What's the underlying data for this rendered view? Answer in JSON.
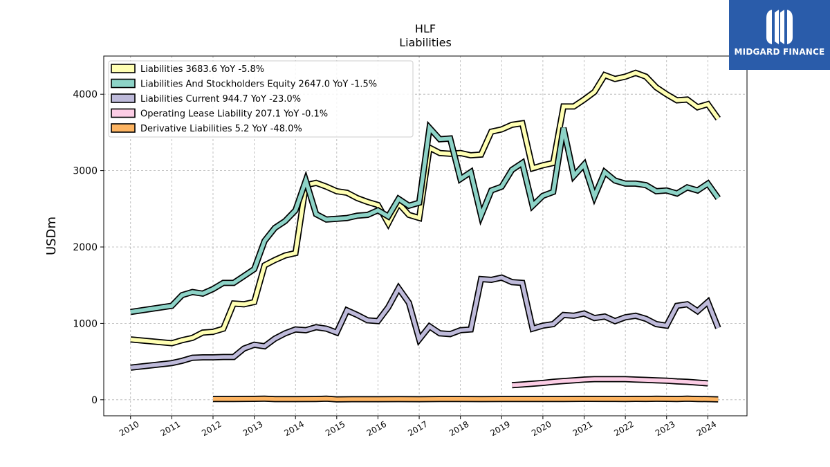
{
  "chart_data": {
    "type": "line",
    "title": "HLF",
    "subtitle": "Liabilities",
    "ylabel": "USDm",
    "xlabel": "",
    "xlim": [
      2009.35,
      2024.95
    ],
    "ylim": [
      -210,
      4500
    ],
    "yticks": [
      0,
      1000,
      2000,
      3000,
      4000
    ],
    "xticks": [
      2010,
      2011,
      2012,
      2013,
      2014,
      2015,
      2016,
      2017,
      2018,
      2019,
      2020,
      2021,
      2022,
      2023,
      2024
    ],
    "grid": true,
    "legend_position": "top-left",
    "series": [
      {
        "name": "Liabilities",
        "legend_label": "Liabilities  3683.6 YoY -5.8%",
        "color": "#ffffb3",
        "points": [
          [
            2010.0,
            790
          ],
          [
            2011.0,
            740
          ],
          [
            2011.25,
            780
          ],
          [
            2011.5,
            810
          ],
          [
            2011.75,
            880
          ],
          [
            2012.0,
            890
          ],
          [
            2012.25,
            930
          ],
          [
            2012.5,
            1260
          ],
          [
            2012.75,
            1250
          ],
          [
            2013.0,
            1280
          ],
          [
            2013.25,
            1760
          ],
          [
            2013.5,
            1830
          ],
          [
            2013.75,
            1890
          ],
          [
            2014.0,
            1920
          ],
          [
            2014.25,
            2810
          ],
          [
            2014.5,
            2840
          ],
          [
            2014.75,
            2790
          ],
          [
            2015.0,
            2730
          ],
          [
            2015.25,
            2710
          ],
          [
            2015.5,
            2640
          ],
          [
            2015.75,
            2590
          ],
          [
            2016.0,
            2550
          ],
          [
            2016.25,
            2310
          ],
          [
            2016.5,
            2570
          ],
          [
            2016.75,
            2420
          ],
          [
            2017.0,
            2380
          ],
          [
            2017.25,
            3300
          ],
          [
            2017.5,
            3230
          ],
          [
            2017.75,
            3220
          ],
          [
            2018.0,
            3230
          ],
          [
            2018.25,
            3200
          ],
          [
            2018.5,
            3210
          ],
          [
            2018.75,
            3510
          ],
          [
            2019.0,
            3540
          ],
          [
            2019.25,
            3600
          ],
          [
            2019.5,
            3620
          ],
          [
            2019.75,
            3030
          ],
          [
            2020.0,
            3070
          ],
          [
            2020.25,
            3100
          ],
          [
            2020.5,
            3840
          ],
          [
            2020.75,
            3840
          ],
          [
            2021.0,
            3930
          ],
          [
            2021.25,
            4030
          ],
          [
            2021.5,
            4250
          ],
          [
            2021.75,
            4200
          ],
          [
            2022.0,
            4230
          ],
          [
            2022.25,
            4280
          ],
          [
            2022.5,
            4230
          ],
          [
            2022.75,
            4090
          ],
          [
            2023.0,
            4000
          ],
          [
            2023.25,
            3920
          ],
          [
            2023.5,
            3930
          ],
          [
            2023.75,
            3830
          ],
          [
            2024.0,
            3870
          ],
          [
            2024.25,
            3680
          ]
        ]
      },
      {
        "name": "Liabilities And Stockholders Equity",
        "legend_label": "Liabilities And Stockholders Equity  2647.0 YoY -1.5%",
        "color": "#8dd3c7",
        "points": [
          [
            2010.0,
            1150
          ],
          [
            2011.0,
            1230
          ],
          [
            2011.25,
            1370
          ],
          [
            2011.5,
            1410
          ],
          [
            2011.75,
            1390
          ],
          [
            2012.0,
            1450
          ],
          [
            2012.25,
            1530
          ],
          [
            2012.5,
            1530
          ],
          [
            2012.75,
            1620
          ],
          [
            2013.0,
            1710
          ],
          [
            2013.25,
            2080
          ],
          [
            2013.5,
            2250
          ],
          [
            2013.75,
            2340
          ],
          [
            2014.0,
            2480
          ],
          [
            2014.25,
            2870
          ],
          [
            2014.5,
            2430
          ],
          [
            2014.75,
            2360
          ],
          [
            2015.0,
            2370
          ],
          [
            2015.25,
            2380
          ],
          [
            2015.5,
            2410
          ],
          [
            2015.75,
            2420
          ],
          [
            2016.0,
            2480
          ],
          [
            2016.25,
            2400
          ],
          [
            2016.5,
            2630
          ],
          [
            2016.75,
            2540
          ],
          [
            2017.0,
            2580
          ],
          [
            2017.25,
            3560
          ],
          [
            2017.5,
            3410
          ],
          [
            2017.75,
            3420
          ],
          [
            2018.0,
            2890
          ],
          [
            2018.25,
            2980
          ],
          [
            2018.5,
            2410
          ],
          [
            2018.75,
            2740
          ],
          [
            2019.0,
            2790
          ],
          [
            2019.25,
            3010
          ],
          [
            2019.5,
            3100
          ],
          [
            2019.75,
            2540
          ],
          [
            2020.0,
            2670
          ],
          [
            2020.25,
            2720
          ],
          [
            2020.5,
            3560
          ],
          [
            2020.75,
            2930
          ],
          [
            2021.0,
            3080
          ],
          [
            2021.25,
            2660
          ],
          [
            2021.5,
            2980
          ],
          [
            2021.75,
            2870
          ],
          [
            2022.0,
            2830
          ],
          [
            2022.25,
            2830
          ],
          [
            2022.5,
            2810
          ],
          [
            2022.75,
            2730
          ],
          [
            2023.0,
            2740
          ],
          [
            2023.25,
            2700
          ],
          [
            2023.5,
            2780
          ],
          [
            2023.75,
            2740
          ],
          [
            2024.0,
            2830
          ],
          [
            2024.25,
            2640
          ]
        ]
      },
      {
        "name": "Liabilities Current",
        "legend_label": "Liabilities Current  944.7 YoY -23.0%",
        "color": "#bebada",
        "points": [
          [
            2010.0,
            420
          ],
          [
            2011.0,
            480
          ],
          [
            2011.25,
            510
          ],
          [
            2011.5,
            550
          ],
          [
            2011.75,
            555
          ],
          [
            2012.0,
            555
          ],
          [
            2012.25,
            560
          ],
          [
            2012.5,
            560
          ],
          [
            2012.75,
            670
          ],
          [
            2013.0,
            720
          ],
          [
            2013.25,
            700
          ],
          [
            2013.5,
            800
          ],
          [
            2013.75,
            870
          ],
          [
            2014.0,
            920
          ],
          [
            2014.25,
            910
          ],
          [
            2014.5,
            950
          ],
          [
            2014.75,
            930
          ],
          [
            2015.0,
            880
          ],
          [
            2015.25,
            1170
          ],
          [
            2015.5,
            1110
          ],
          [
            2015.75,
            1040
          ],
          [
            2016.0,
            1030
          ],
          [
            2016.25,
            1210
          ],
          [
            2016.5,
            1460
          ],
          [
            2016.75,
            1270
          ],
          [
            2017.0,
            790
          ],
          [
            2017.25,
            960
          ],
          [
            2017.5,
            870
          ],
          [
            2017.75,
            860
          ],
          [
            2018.0,
            910
          ],
          [
            2018.25,
            920
          ],
          [
            2018.5,
            1580
          ],
          [
            2018.75,
            1570
          ],
          [
            2019.0,
            1600
          ],
          [
            2019.25,
            1540
          ],
          [
            2019.5,
            1530
          ],
          [
            2019.75,
            930
          ],
          [
            2020.0,
            970
          ],
          [
            2020.25,
            990
          ],
          [
            2020.5,
            1110
          ],
          [
            2020.75,
            1100
          ],
          [
            2021.0,
            1130
          ],
          [
            2021.25,
            1070
          ],
          [
            2021.5,
            1090
          ],
          [
            2021.75,
            1030
          ],
          [
            2022.0,
            1080
          ],
          [
            2022.25,
            1100
          ],
          [
            2022.5,
            1060
          ],
          [
            2022.75,
            990
          ],
          [
            2023.0,
            970
          ],
          [
            2023.25,
            1230
          ],
          [
            2023.5,
            1250
          ],
          [
            2023.75,
            1160
          ],
          [
            2024.0,
            1280
          ],
          [
            2024.25,
            940
          ]
        ]
      },
      {
        "name": "Operating Lease Liability",
        "legend_label": "Operating Lease Liability  207.1 YoY -0.1%",
        "color": "#fccde5",
        "points": [
          [
            2019.25,
            190
          ],
          [
            2019.5,
            200
          ],
          [
            2019.75,
            210
          ],
          [
            2020.0,
            220
          ],
          [
            2020.25,
            235
          ],
          [
            2020.5,
            245
          ],
          [
            2020.75,
            255
          ],
          [
            2021.0,
            265
          ],
          [
            2021.25,
            270
          ],
          [
            2021.5,
            270
          ],
          [
            2021.75,
            270
          ],
          [
            2022.0,
            270
          ],
          [
            2022.25,
            265
          ],
          [
            2022.5,
            260
          ],
          [
            2022.75,
            255
          ],
          [
            2023.0,
            250
          ],
          [
            2023.25,
            240
          ],
          [
            2023.5,
            235
          ],
          [
            2023.75,
            225
          ],
          [
            2024.0,
            215
          ]
        ]
      },
      {
        "name": "Derivative Liabilities",
        "legend_label": "Derivative Liabilities  5.2 YoY -48.0%",
        "color": "#fdb462",
        "points": [
          [
            2012.0,
            10
          ],
          [
            2012.5,
            10
          ],
          [
            2013.0,
            12
          ],
          [
            2013.25,
            15
          ],
          [
            2013.5,
            8
          ],
          [
            2014.0,
            8
          ],
          [
            2014.5,
            10
          ],
          [
            2014.75,
            14
          ],
          [
            2015.0,
            6
          ],
          [
            2015.5,
            7
          ],
          [
            2016.0,
            7
          ],
          [
            2016.5,
            8
          ],
          [
            2017.0,
            7
          ],
          [
            2017.5,
            9
          ],
          [
            2018.0,
            10
          ],
          [
            2018.5,
            8
          ],
          [
            2019.0,
            9
          ],
          [
            2019.5,
            9
          ],
          [
            2020.0,
            10
          ],
          [
            2020.5,
            10
          ],
          [
            2021.0,
            12
          ],
          [
            2021.5,
            11
          ],
          [
            2022.0,
            10
          ],
          [
            2022.25,
            12
          ],
          [
            2022.5,
            11
          ],
          [
            2022.75,
            13
          ],
          [
            2023.0,
            12
          ],
          [
            2023.25,
            10
          ],
          [
            2023.5,
            14
          ],
          [
            2023.75,
            10
          ],
          [
            2024.0,
            8
          ],
          [
            2024.25,
            5
          ]
        ]
      }
    ]
  },
  "logo": {
    "text": "MIDGARD FINANCE"
  }
}
